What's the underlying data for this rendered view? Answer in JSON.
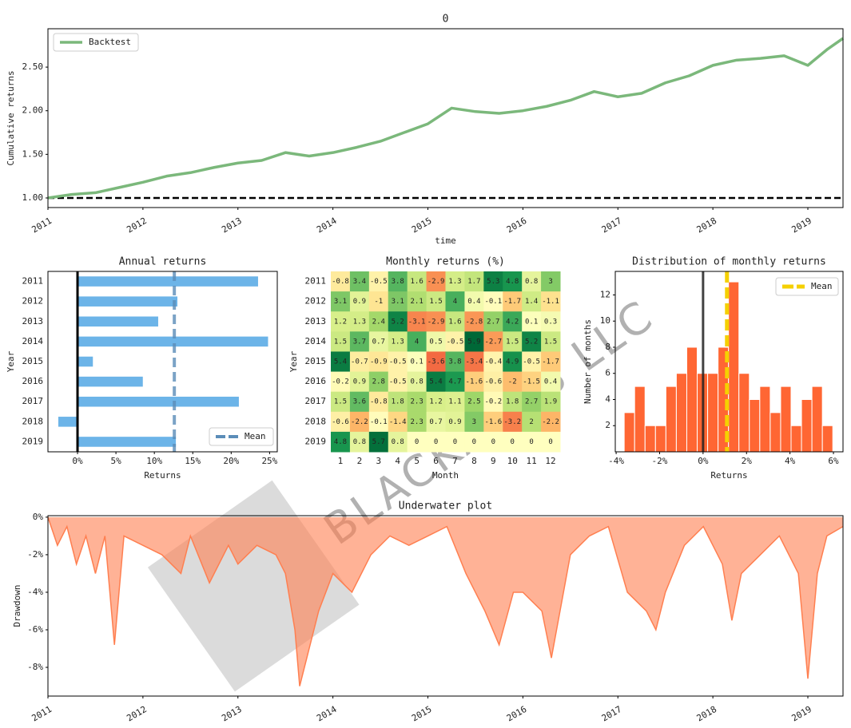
{
  "watermark": "BLACKARBS LLC",
  "chart_data": [
    {
      "type": "line",
      "title": "0",
      "xlabel": "time",
      "ylabel": "Cumulative returns",
      "x": [
        2011.0,
        2011.25,
        2011.5,
        2011.75,
        2012.0,
        2012.25,
        2012.5,
        2012.75,
        2013.0,
        2013.25,
        2013.5,
        2013.75,
        2014.0,
        2014.25,
        2014.5,
        2014.75,
        2015.0,
        2015.25,
        2015.5,
        2015.75,
        2016.0,
        2016.25,
        2016.5,
        2016.75,
        2017.0,
        2017.25,
        2017.5,
        2017.75,
        2018.0,
        2018.25,
        2018.5,
        2018.75,
        2019.0,
        2019.2,
        2019.37
      ],
      "series": [
        {
          "name": "Backtest",
          "color": "#7bb87b",
          "values": [
            1.0,
            1.04,
            1.06,
            1.12,
            1.18,
            1.25,
            1.29,
            1.35,
            1.4,
            1.43,
            1.52,
            1.48,
            1.52,
            1.58,
            1.65,
            1.75,
            1.85,
            2.03,
            1.99,
            1.97,
            2.0,
            2.05,
            2.12,
            2.22,
            2.16,
            2.2,
            2.32,
            2.4,
            2.52,
            2.58,
            2.6,
            2.63,
            2.52,
            2.7,
            2.83
          ]
        }
      ],
      "reference_line": 1,
      "xlim": [
        2011,
        2019.37
      ],
      "xticks": [
        2011,
        2012,
        2013,
        2014,
        2015,
        2016,
        2017,
        2018,
        2019
      ],
      "ylim": [
        0.89,
        2.94
      ],
      "yticks": [
        {
          "value": 1,
          "label": "1.00"
        },
        {
          "value": 1.5,
          "label": "1.50"
        },
        {
          "value": 2,
          "label": "2.00"
        },
        {
          "value": 2.5,
          "label": "2.50"
        }
      ],
      "legend": "upper left"
    },
    {
      "type": "bar",
      "orientation": "horizontal",
      "title": "Annual returns",
      "xlabel": "Returns",
      "ylabel": "Year",
      "categories": [
        "2011",
        "2012",
        "2013",
        "2014",
        "2015",
        "2016",
        "2017",
        "2018",
        "2019"
      ],
      "values": [
        23.5,
        13,
        10.5,
        24.8,
        2,
        8.5,
        21,
        -2.5,
        12.8
      ],
      "color": "#6cb4e8",
      "mean": 12.6,
      "mean_name": "Mean",
      "mean_color": "#5b8db8",
      "xlim": [
        -3.85,
        26
      ],
      "xticks": [
        {
          "value": 0,
          "label": "0%"
        },
        {
          "value": 5,
          "label": "5%"
        },
        {
          "value": 10,
          "label": "10%"
        },
        {
          "value": 15,
          "label": "15%"
        },
        {
          "value": 20,
          "label": "20%"
        },
        {
          "value": 25,
          "label": "25%"
        }
      ],
      "legend": "lower right"
    },
    {
      "type": "heatmap",
      "title": "Monthly returns (%)",
      "xlabel": "Month",
      "ylabel": "Year",
      "colormap": "RdYlGn",
      "categories": [
        1,
        2,
        3,
        4,
        5,
        6,
        7,
        8,
        9,
        10,
        11,
        12
      ],
      "y_categories": [
        "2011",
        "2012",
        "2013",
        "2014",
        "2015",
        "2016",
        "2017",
        "2018",
        "2019"
      ],
      "values": [
        [
          -0.8,
          3.4,
          -0.5,
          3.8,
          1.6,
          -2.9,
          1.3,
          1.7,
          5.3,
          4.8,
          0.8,
          3
        ],
        [
          3.1,
          0.9,
          -1,
          3.1,
          2.1,
          1.5,
          4,
          0.4,
          -0.1,
          -1.7,
          1.4,
          -1.1
        ],
        [
          1.2,
          1.3,
          2.4,
          5.2,
          -3.1,
          -2.9,
          1.6,
          -2.8,
          2.7,
          4.2,
          0.1,
          0.3
        ],
        [
          1.5,
          3.7,
          0.7,
          1.3,
          4,
          0.5,
          -0.5,
          5.9,
          -2.7,
          1.5,
          5.2,
          1.5
        ],
        [
          5.4,
          -0.7,
          -0.9,
          -0.5,
          0.1,
          -3.6,
          3.8,
          -3.4,
          -0.4,
          4.9,
          -0.5,
          -1.7
        ],
        [
          -0.2,
          0.9,
          2.8,
          -0.5,
          0.8,
          5.4,
          4.7,
          -1.6,
          -0.6,
          -2,
          -1.5,
          0.4
        ],
        [
          1.5,
          3.6,
          -0.8,
          1.8,
          2.3,
          1.2,
          1.1,
          2.5,
          -0.2,
          1.8,
          2.7,
          1.9
        ],
        [
          -0.6,
          -2.2,
          -0.1,
          -1.4,
          2.3,
          0.7,
          0.9,
          3,
          -1.6,
          -3.2,
          2,
          -2.2
        ],
        [
          4.8,
          0.8,
          5.7,
          0.8,
          0,
          0,
          0,
          0,
          0,
          0,
          0,
          0
        ]
      ]
    },
    {
      "type": "histogram",
      "title": "Distribution of monthly returns",
      "xlabel": "Returns",
      "ylabel": "Number of months",
      "bins": [
        -3.63,
        -3.15,
        -2.67,
        -2.19,
        -1.71,
        -1.23,
        -0.75,
        -0.27,
        0.21,
        0.69,
        1.17,
        1.65,
        2.13,
        2.61,
        3.09,
        3.57,
        4.05,
        4.53,
        5.01,
        5.49,
        5.97
      ],
      "values": [
        3,
        5,
        2,
        2,
        5,
        6,
        8,
        6,
        6,
        8,
        13,
        6,
        4,
        5,
        3,
        5,
        2,
        4,
        5,
        2
      ],
      "color": "#ff6633",
      "mean": 1.1,
      "mean_name": "Mean",
      "mean_color": "#f5d000",
      "xlim": [
        -4.04,
        6.44
      ],
      "xticks": [
        {
          "value": -4,
          "label": "-4%"
        },
        {
          "value": -2,
          "label": "-2%"
        },
        {
          "value": 0,
          "label": "0%"
        },
        {
          "value": 2,
          "label": "2%"
        },
        {
          "value": 4,
          "label": "4%"
        },
        {
          "value": 6,
          "label": "6%"
        }
      ],
      "ylim": [
        0,
        13.8
      ],
      "yticks": [
        2,
        4,
        6,
        8,
        10,
        12
      ],
      "legend": "upper right"
    },
    {
      "type": "area",
      "title": "Underwater plot",
      "ylabel": "Drawdown",
      "color": "#ff7f50",
      "x": [
        2011.0,
        2011.1,
        2011.2,
        2011.3,
        2011.4,
        2011.5,
        2011.6,
        2011.7,
        2011.8,
        2012.0,
        2012.2,
        2012.4,
        2012.5,
        2012.7,
        2012.9,
        2013.0,
        2013.2,
        2013.4,
        2013.5,
        2013.6,
        2013.65,
        2013.75,
        2013.85,
        2014.0,
        2014.2,
        2014.4,
        2014.6,
        2014.8,
        2015.0,
        2015.2,
        2015.4,
        2015.6,
        2015.75,
        2015.9,
        2016.0,
        2016.2,
        2016.3,
        2016.5,
        2016.7,
        2016.9,
        2017.1,
        2017.3,
        2017.4,
        2017.5,
        2017.7,
        2017.9,
        2018.1,
        2018.2,
        2018.3,
        2018.5,
        2018.7,
        2018.9,
        2019.0,
        2019.1,
        2019.2,
        2019.37
      ],
      "values": [
        0,
        -1.5,
        -0.5,
        -2.5,
        -1,
        -3,
        -1,
        -6.8,
        -1,
        -1.5,
        -2,
        -3,
        -1,
        -3.5,
        -1.5,
        -2.5,
        -1.5,
        -2,
        -3,
        -6,
        -9,
        -7,
        -5,
        -3,
        -4,
        -2,
        -1,
        -1.5,
        -1,
        -0.5,
        -3,
        -5,
        -6.8,
        -4,
        -4,
        -5,
        -7.5,
        -2,
        -1,
        -0.5,
        -4,
        -5,
        -6,
        -4,
        -1.5,
        -0.5,
        -2.5,
        -5.5,
        -3,
        -2,
        -1,
        -3,
        -8.6,
        -3,
        -1,
        -0.5
      ],
      "xlim": [
        2011,
        2019.37
      ],
      "xticks": [
        2011,
        2012,
        2013,
        2014,
        2015,
        2016,
        2017,
        2018,
        2019
      ],
      "ylim": [
        -9.53,
        0.08
      ],
      "yticks": [
        {
          "value": 0,
          "label": "0%"
        },
        {
          "value": -2,
          "label": "-2%"
        },
        {
          "value": -4,
          "label": "-4%"
        },
        {
          "value": -6,
          "label": "-6%"
        },
        {
          "value": -8,
          "label": "-8%"
        }
      ]
    }
  ]
}
